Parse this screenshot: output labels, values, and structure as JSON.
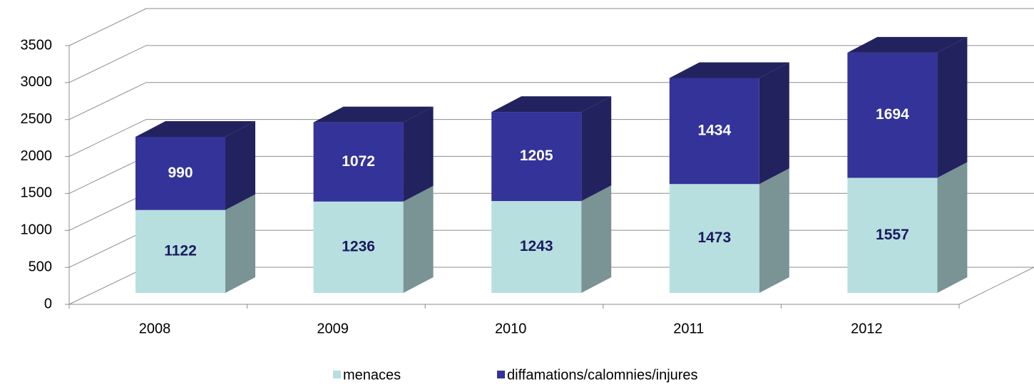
{
  "chart_data": {
    "type": "bar3d_stacked",
    "categories": [
      "2008",
      "2009",
      "2010",
      "2011",
      "2012"
    ],
    "series": [
      {
        "name": "menaces",
        "color": "#b7dfe0",
        "side_color": "#7a9394",
        "label_color": "#1a1a5e",
        "values": [
          1122,
          1236,
          1243,
          1473,
          1557
        ]
      },
      {
        "name": "diffamations/calomnies/injures",
        "color": "#333399",
        "side_color": "#22225e",
        "label_color": "#ffffff",
        "values": [
          990,
          1072,
          1205,
          1434,
          1694
        ]
      }
    ],
    "ylim": [
      0,
      3500
    ],
    "yticks": [
      0,
      500,
      1000,
      1500,
      2000,
      2500,
      3000,
      3500
    ],
    "grid": true
  }
}
